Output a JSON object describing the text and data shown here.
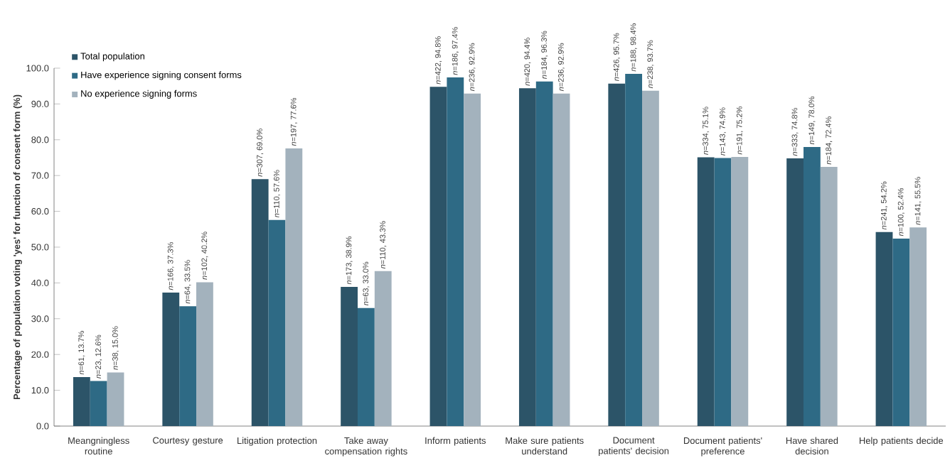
{
  "chart_data": {
    "type": "bar",
    "ylabel": "Percentage of population voting 'yes' for function of consent form (%)",
    "categories": [
      "Meangningless routine",
      "Courtesy gesture",
      "Litigation protection",
      "Take away compensation rights",
      "Inform patients",
      "Make sure patients understand",
      "Document patients' decision",
      "Document patients' preference",
      "Have shared decision",
      "Help patients decide"
    ],
    "series": [
      {
        "name": "Total population",
        "color": "#2c5468",
        "values": [
          13.7,
          37.3,
          69.0,
          38.9,
          94.8,
          94.4,
          95.7,
          75.1,
          74.8,
          54.2
        ],
        "value_labels": [
          "*n*=61, 13.7%",
          "*n*=166, 37.3%",
          "*n*=307, 69.0%",
          "*n*=173, 38.9%",
          "*n*=422, 94.8%",
          "*n*=420, 94.4%",
          "*n*=426, 95.7%",
          "*n*=334, 75.1%",
          "*n*=333, 74.8%",
          "*n*=241, 54.2%"
        ]
      },
      {
        "name": "Have experience signing consent forms",
        "color": "#2e6a85",
        "values": [
          12.6,
          33.5,
          57.6,
          33.0,
          97.4,
          96.3,
          98.4,
          74.9,
          78.0,
          52.4
        ],
        "value_labels": [
          "*n*=23, 12.6%",
          "*n*=64, 33.5%",
          "*n*=110, 57.6%",
          "*n*=63, 33.0%",
          "*n*=186, 97.4%",
          "*n*=184, 96.3%",
          "*n*=188, 98.4%",
          "*n*=143, 74.9%",
          "*n*=149, 78.0%",
          "*n*=100, 52.4%"
        ]
      },
      {
        "name": "No experience signing forms",
        "color": "#a3b2bd",
        "values": [
          15.0,
          40.2,
          77.6,
          43.3,
          92.9,
          92.9,
          93.7,
          75.2,
          72.4,
          55.5
        ],
        "value_labels": [
          "*n*=38, 15.0%",
          "*n*=102, 40.2%",
          "*n*=197, 77.6%",
          "*n*=110, 43.3%",
          "*n*=236, 92.9%",
          "*n*=236, 92.9%",
          "*n*=238, 93.7%",
          "*n*=191, 75.2%",
          "*n*=184, 72.4%",
          "*n*=141, 55.5%"
        ]
      }
    ],
    "ylim": [
      0,
      100
    ],
    "yticks": [
      {
        "value": 0,
        "label": "0.0"
      },
      {
        "value": 10,
        "label": "10.0"
      },
      {
        "value": 20,
        "label": "20.0"
      },
      {
        "value": 30,
        "label": "30.0"
      },
      {
        "value": 40,
        "label": "40.0"
      },
      {
        "value": 50,
        "label": "50.0"
      },
      {
        "value": 60,
        "label": "60.0"
      },
      {
        "value": 70,
        "label": "70.0"
      },
      {
        "value": 80,
        "label": "80.0"
      },
      {
        "value": 90,
        "label": "90.0"
      },
      {
        "value": 100,
        "label": "100.0"
      }
    ],
    "legend": "top left"
  }
}
